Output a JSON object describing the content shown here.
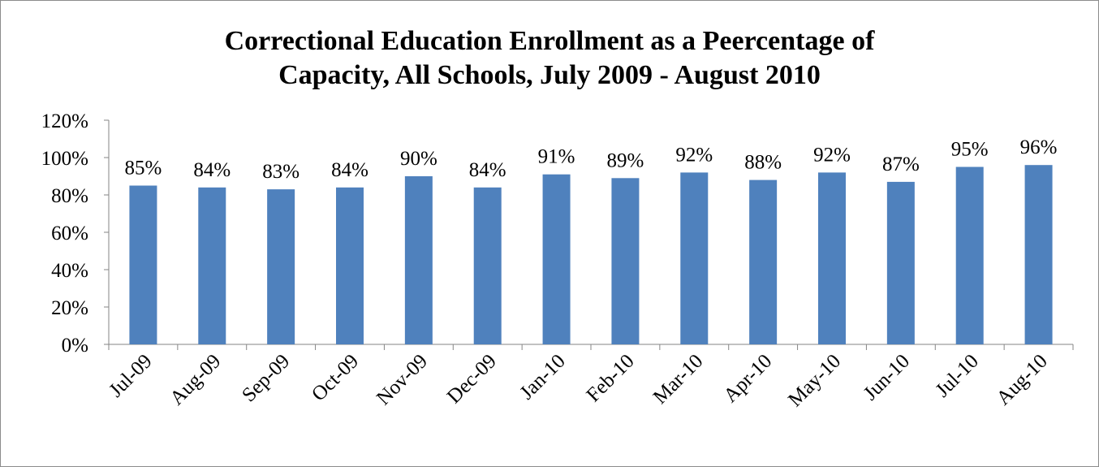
{
  "chart_data": {
    "type": "bar",
    "title_lines": [
      "Correctional Education Enrollment as a Peercentage of",
      "Capacity, All Schools, July 2009 - August 2010"
    ],
    "categories": [
      "Jul-09",
      "Aug-09",
      "Sep-09",
      "Oct-09",
      "Nov-09",
      "Dec-09",
      "Jan-10",
      "Feb-10",
      "Mar-10",
      "Apr-10",
      "May-10",
      "Jun-10",
      "Jul-10",
      "Aug-10"
    ],
    "values": [
      85,
      84,
      83,
      84,
      90,
      84,
      91,
      89,
      92,
      88,
      92,
      87,
      95,
      96
    ],
    "data_labels": [
      "85%",
      "84%",
      "83%",
      "84%",
      "90%",
      "84%",
      "91%",
      "89%",
      "92%",
      "88%",
      "92%",
      "87%",
      "95%",
      "96%"
    ],
    "y_ticks": [
      0,
      20,
      40,
      60,
      80,
      100,
      120
    ],
    "y_tick_labels": [
      "0%",
      "20%",
      "40%",
      "60%",
      "80%",
      "100%",
      "120%"
    ],
    "ylim": [
      0,
      120
    ],
    "grid": false,
    "legend": "none",
    "bar_color": "#4f81bd"
  }
}
